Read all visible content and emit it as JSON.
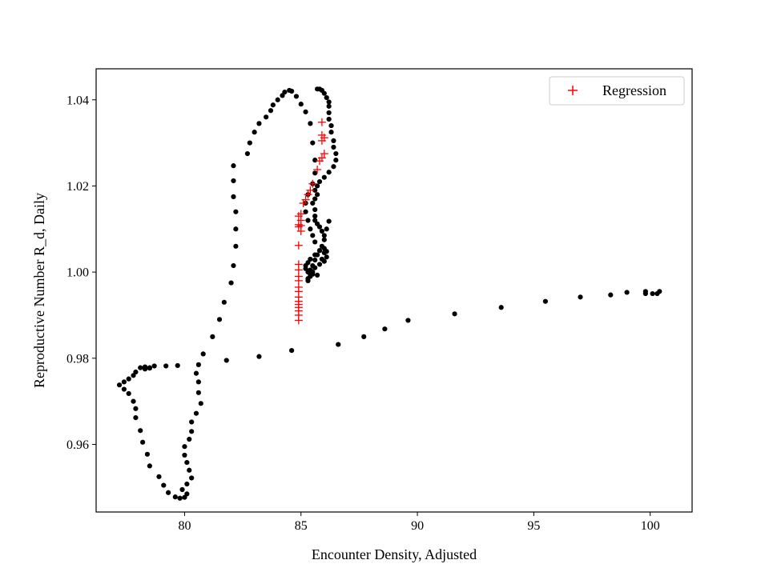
{
  "chart_data": {
    "type": "scatter",
    "title": "",
    "xlabel": "Encounter Density, Adjusted",
    "ylabel": "Reproductive Number R_d, Daily",
    "xlim": [
      76.2,
      101.8
    ],
    "ylim": [
      0.9443,
      1.0472
    ],
    "xticks": [
      80,
      85,
      90,
      95,
      100
    ],
    "yticks": [
      0.96,
      0.98,
      1.0,
      1.02,
      1.04
    ],
    "xtick_labels": [
      "80",
      "85",
      "90",
      "95",
      "100"
    ],
    "ytick_labels": [
      "0.96",
      "0.98",
      "1.00",
      "1.02",
      "1.04"
    ],
    "grid": false,
    "legend_position": "top-right",
    "colors": {
      "data": "#000000",
      "regression": "#ff0000",
      "axes": "#000000"
    },
    "series": [
      {
        "marker": "circle",
        "color": "#000000",
        "points": [
          [
            100.4,
            0.9955
          ],
          [
            100.3,
            0.995
          ],
          [
            100.1,
            0.995
          ],
          [
            99.8,
            0.9955
          ],
          [
            99.8,
            0.995
          ],
          [
            99.0,
            0.9953
          ],
          [
            98.3,
            0.9947
          ],
          [
            97.0,
            0.9942
          ],
          [
            95.5,
            0.9932
          ],
          [
            93.6,
            0.9918
          ],
          [
            91.6,
            0.9903
          ],
          [
            89.6,
            0.9888
          ],
          [
            88.6,
            0.9868
          ],
          [
            87.7,
            0.985
          ],
          [
            86.6,
            0.9832
          ],
          [
            84.6,
            0.9818
          ],
          [
            83.2,
            0.9804
          ],
          [
            81.8,
            0.9795
          ],
          [
            77.2,
            0.9738
          ],
          [
            77.4,
            0.9745
          ],
          [
            77.6,
            0.9752
          ],
          [
            77.8,
            0.976
          ],
          [
            77.9,
            0.9768
          ],
          [
            78.1,
            0.9778
          ],
          [
            78.3,
            0.978
          ],
          [
            78.5,
            0.9777
          ],
          [
            78.7,
            0.9782
          ],
          [
            78.5,
            0.9778
          ],
          [
            78.3,
            0.9775
          ],
          [
            77.4,
            0.9728
          ],
          [
            77.6,
            0.9718
          ],
          [
            77.8,
            0.97
          ],
          [
            77.9,
            0.9683
          ],
          [
            77.9,
            0.9662
          ],
          [
            78.1,
            0.9632
          ],
          [
            78.2,
            0.9605
          ],
          [
            78.4,
            0.9577
          ],
          [
            78.5,
            0.955
          ],
          [
            78.9,
            0.9525
          ],
          [
            79.1,
            0.9505
          ],
          [
            79.3,
            0.9488
          ],
          [
            79.6,
            0.9478
          ],
          [
            79.8,
            0.9475
          ],
          [
            80.0,
            0.9477
          ],
          [
            80.1,
            0.9485
          ],
          [
            79.9,
            0.9495
          ],
          [
            80.1,
            0.9508
          ],
          [
            80.3,
            0.9522
          ],
          [
            80.2,
            0.954
          ],
          [
            80.1,
            0.9558
          ],
          [
            80.0,
            0.9575
          ],
          [
            80.0,
            0.9595
          ],
          [
            80.2,
            0.9612
          ],
          [
            80.3,
            0.963
          ],
          [
            80.3,
            0.9652
          ],
          [
            80.5,
            0.9672
          ],
          [
            80.7,
            0.9695
          ],
          [
            80.6,
            0.972
          ],
          [
            80.6,
            0.9745
          ],
          [
            80.5,
            0.9765
          ],
          [
            80.6,
            0.9785
          ],
          [
            80.8,
            0.981
          ],
          [
            79.2,
            0.9782
          ],
          [
            79.7,
            0.9783
          ],
          [
            81.2,
            0.985
          ],
          [
            81.5,
            0.989
          ],
          [
            81.7,
            0.993
          ],
          [
            82.0,
            0.9975
          ],
          [
            82.1,
            1.0015
          ],
          [
            82.2,
            1.006
          ],
          [
            82.2,
            1.01
          ],
          [
            82.2,
            1.014
          ],
          [
            82.1,
            1.0175
          ],
          [
            82.1,
            1.0212
          ],
          [
            82.1,
            1.0247
          ],
          [
            82.7,
            1.0275
          ],
          [
            82.8,
            1.03
          ],
          [
            83.0,
            1.0325
          ],
          [
            83.2,
            1.0345
          ],
          [
            83.5,
            1.036
          ],
          [
            83.7,
            1.0375
          ],
          [
            83.8,
            1.0388
          ],
          [
            84.0,
            1.04
          ],
          [
            84.2,
            1.041
          ],
          [
            84.3,
            1.0418
          ],
          [
            84.5,
            1.0422
          ],
          [
            84.6,
            1.042
          ],
          [
            84.8,
            1.0408
          ],
          [
            85.0,
            1.039
          ],
          [
            85.2,
            1.0372
          ],
          [
            85.4,
            1.0345
          ],
          [
            85.5,
            1.03
          ],
          [
            85.6,
            1.026
          ],
          [
            85.6,
            1.023
          ],
          [
            85.5,
            1.0205
          ],
          [
            85.3,
            1.018
          ],
          [
            85.2,
            1.016
          ],
          [
            85.7,
            1.0425
          ],
          [
            85.8,
            1.0425
          ],
          [
            85.9,
            1.0422
          ],
          [
            86.0,
            1.0415
          ],
          [
            86.1,
            1.0405
          ],
          [
            86.2,
            1.0395
          ],
          [
            86.2,
            1.0385
          ],
          [
            86.2,
            1.037
          ],
          [
            86.2,
            1.0355
          ],
          [
            86.3,
            1.034
          ],
          [
            86.3,
            1.0325
          ],
          [
            86.4,
            1.0305
          ],
          [
            86.4,
            1.029
          ],
          [
            86.5,
            1.0275
          ],
          [
            86.5,
            1.026
          ],
          [
            86.4,
            1.0245
          ],
          [
            86.2,
            1.0232
          ],
          [
            86.0,
            1.022
          ],
          [
            85.8,
            1.021
          ],
          [
            85.7,
            1.02
          ],
          [
            85.6,
            1.019
          ],
          [
            85.7,
            1.018
          ],
          [
            85.6,
            1.017
          ],
          [
            85.5,
            1.016
          ],
          [
            85.6,
            1.0145
          ],
          [
            85.6,
            1.013
          ],
          [
            85.6,
            1.012
          ],
          [
            85.7,
            1.0112
          ],
          [
            85.8,
            1.0105
          ],
          [
            85.9,
            1.0095
          ],
          [
            86.0,
            1.0085
          ],
          [
            86.0,
            1.0075
          ],
          [
            85.9,
            1.006
          ],
          [
            85.8,
            1.005
          ],
          [
            85.7,
            1.004
          ],
          [
            85.6,
            1.0028
          ],
          [
            85.5,
            1.0015
          ],
          [
            85.4,
            1.0005
          ],
          [
            85.4,
            0.9995
          ],
          [
            85.3,
            0.9985
          ],
          [
            85.3,
            0.998
          ],
          [
            85.4,
            0.999
          ],
          [
            85.5,
            1.0
          ],
          [
            85.6,
            1.001
          ],
          [
            85.8,
            1.0018
          ],
          [
            86.0,
            1.0025
          ],
          [
            86.1,
            1.0035
          ],
          [
            86.1,
            1.0048
          ],
          [
            86.0,
            1.0055
          ],
          [
            85.8,
            1.005
          ],
          [
            85.6,
            1.004
          ],
          [
            85.4,
            1.003
          ],
          [
            85.3,
            1.0022
          ],
          [
            85.2,
            1.0015
          ],
          [
            85.2,
            1.0008
          ],
          [
            85.3,
            1.0
          ],
          [
            85.5,
            0.9995
          ],
          [
            85.7,
            0.9993
          ],
          [
            85.2,
            1.014
          ],
          [
            85.3,
            1.012
          ],
          [
            85.4,
            1.01
          ],
          [
            85.5,
            1.0085
          ],
          [
            85.6,
            1.007
          ],
          [
            86.1,
            1.01
          ],
          [
            86.2,
            1.0118
          ],
          [
            86.0,
            1.0045
          ],
          [
            85.9,
            1.003
          ]
        ]
      },
      {
        "name": "Regression",
        "marker": "plus",
        "color": "#ff0000",
        "points": [
          [
            85.9,
            1.0348
          ],
          [
            85.9,
            1.0318
          ],
          [
            85.9,
            1.0305
          ],
          [
            86.0,
            1.0312
          ],
          [
            86.0,
            1.0275
          ],
          [
            85.9,
            1.0265
          ],
          [
            85.8,
            1.0258
          ],
          [
            85.7,
            1.0238
          ],
          [
            85.5,
            1.0205
          ],
          [
            85.4,
            1.019
          ],
          [
            85.3,
            1.018
          ],
          [
            85.2,
            1.0168
          ],
          [
            85.1,
            1.016
          ],
          [
            85.0,
            1.0135
          ],
          [
            84.9,
            1.013
          ],
          [
            85.0,
            1.012
          ],
          [
            84.9,
            1.011
          ],
          [
            85.0,
            1.0108
          ],
          [
            84.9,
            1.0105
          ],
          [
            85.0,
            1.0095
          ],
          [
            84.9,
            1.0062
          ],
          [
            84.9,
            1.0018
          ],
          [
            84.9,
            1.0005
          ],
          [
            84.9,
            0.999
          ],
          [
            84.9,
            0.998
          ],
          [
            84.9,
            0.9965
          ],
          [
            84.9,
            0.9955
          ],
          [
            84.9,
            0.9942
          ],
          [
            84.9,
            0.9932
          ],
          [
            84.9,
            0.9925
          ],
          [
            84.9,
            0.9918
          ],
          [
            84.9,
            0.991
          ],
          [
            84.9,
            0.99
          ],
          [
            84.9,
            0.9888
          ]
        ]
      }
    ],
    "legend": [
      {
        "label": "Regression",
        "marker": "plus",
        "color": "#ff0000"
      }
    ]
  }
}
